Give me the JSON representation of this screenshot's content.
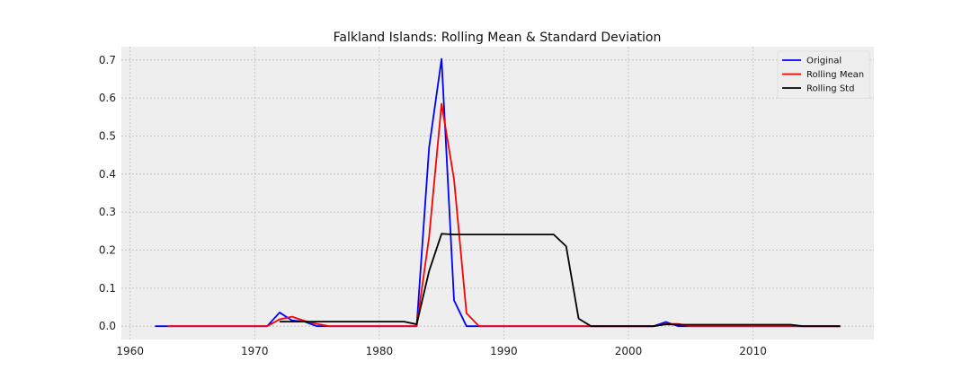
{
  "chart_data": {
    "type": "line",
    "title": "Falkland Islands: Rolling Mean & Standard Deviation",
    "xlabel": "",
    "ylabel": "",
    "xlim": [
      1959.3,
      2019.7
    ],
    "ylim": [
      -0.035,
      0.735
    ],
    "x_ticks": [
      1960,
      1970,
      1980,
      1990,
      2000,
      2010
    ],
    "y_ticks": [
      0.0,
      0.1,
      0.2,
      0.3,
      0.4,
      0.5,
      0.6,
      0.7
    ],
    "y_tick_labels": [
      "0.0",
      "0.1",
      "0.2",
      "0.3",
      "0.4",
      "0.5",
      "0.6",
      "0.7"
    ],
    "grid": true,
    "legend_position": "top-right",
    "series": [
      {
        "name": "Original",
        "color": "#0000ff",
        "x": [
          1962,
          1963,
          1964,
          1965,
          1966,
          1967,
          1968,
          1969,
          1970,
          1971,
          1972,
          1973,
          1974,
          1975,
          1976,
          1977,
          1978,
          1979,
          1980,
          1981,
          1982,
          1983,
          1984,
          1985,
          1986,
          1987,
          1988,
          1989,
          1990,
          1991,
          1992,
          1993,
          1994,
          1995,
          1996,
          1997,
          1998,
          1999,
          2000,
          2001,
          2002,
          2003,
          2004,
          2005,
          2006,
          2007,
          2008,
          2009,
          2010,
          2011,
          2012,
          2013,
          2014,
          2015,
          2016,
          2017
        ],
        "y": [
          0,
          0,
          0,
          0,
          0,
          0,
          0,
          0,
          0,
          0,
          0.036,
          0.015,
          0.012,
          0,
          0,
          0,
          0,
          0,
          0,
          0,
          0,
          0,
          0.47,
          0.703,
          0.068,
          0,
          0,
          0,
          0,
          0,
          0,
          0,
          0,
          0,
          0,
          0,
          0,
          0,
          0,
          0,
          0,
          0.011,
          0,
          0,
          0,
          0,
          0,
          0,
          0,
          0,
          0,
          0,
          0,
          0,
          0,
          0
        ]
      },
      {
        "name": "Rolling Mean",
        "color": "#ff0000",
        "x": [
          1963,
          1964,
          1965,
          1966,
          1967,
          1968,
          1969,
          1970,
          1971,
          1972,
          1973,
          1974,
          1975,
          1976,
          1977,
          1978,
          1979,
          1980,
          1981,
          1982,
          1983,
          1984,
          1985,
          1986,
          1987,
          1988,
          1989,
          1990,
          1991,
          1992,
          1993,
          1994,
          1995,
          1996,
          1997,
          1998,
          1999,
          2000,
          2001,
          2002,
          2003,
          2004,
          2005,
          2006,
          2007,
          2008,
          2009,
          2010,
          2011,
          2012,
          2013,
          2014,
          2015,
          2016,
          2017
        ],
        "y": [
          0,
          0,
          0,
          0,
          0,
          0,
          0,
          0,
          0,
          0.018,
          0.025,
          0.014,
          0.006,
          0,
          0,
          0,
          0,
          0,
          0,
          0,
          0,
          0.235,
          0.585,
          0.386,
          0.034,
          0,
          0,
          0,
          0,
          0,
          0,
          0,
          0,
          0,
          0,
          0,
          0,
          0,
          0,
          0,
          0.006,
          0.006,
          0,
          0,
          0,
          0,
          0,
          0,
          0,
          0,
          0,
          0,
          0,
          0,
          0
        ]
      },
      {
        "name": "Rolling Std",
        "color": "#000000",
        "x": [
          1972,
          1973,
          1974,
          1975,
          1976,
          1977,
          1978,
          1979,
          1980,
          1981,
          1982,
          1983,
          1984,
          1985,
          1986,
          1987,
          1988,
          1989,
          1990,
          1991,
          1992,
          1993,
          1994,
          1995,
          1996,
          1997,
          1998,
          1999,
          2000,
          2001,
          2002,
          2003,
          2004,
          2005,
          2006,
          2007,
          2008,
          2009,
          2010,
          2011,
          2012,
          2013,
          2014,
          2015,
          2016,
          2017
        ],
        "y": [
          0.012,
          0.012,
          0.012,
          0.012,
          0.012,
          0.012,
          0.012,
          0.012,
          0.012,
          0.012,
          0.012,
          0.005,
          0.145,
          0.243,
          0.241,
          0.241,
          0.241,
          0.241,
          0.241,
          0.241,
          0.241,
          0.241,
          0.241,
          0.21,
          0.02,
          0,
          0,
          0,
          0,
          0,
          0,
          0.005,
          0.004,
          0.004,
          0.004,
          0.004,
          0.004,
          0.004,
          0.004,
          0.004,
          0.004,
          0.004,
          0,
          0,
          0,
          0
        ]
      }
    ]
  }
}
